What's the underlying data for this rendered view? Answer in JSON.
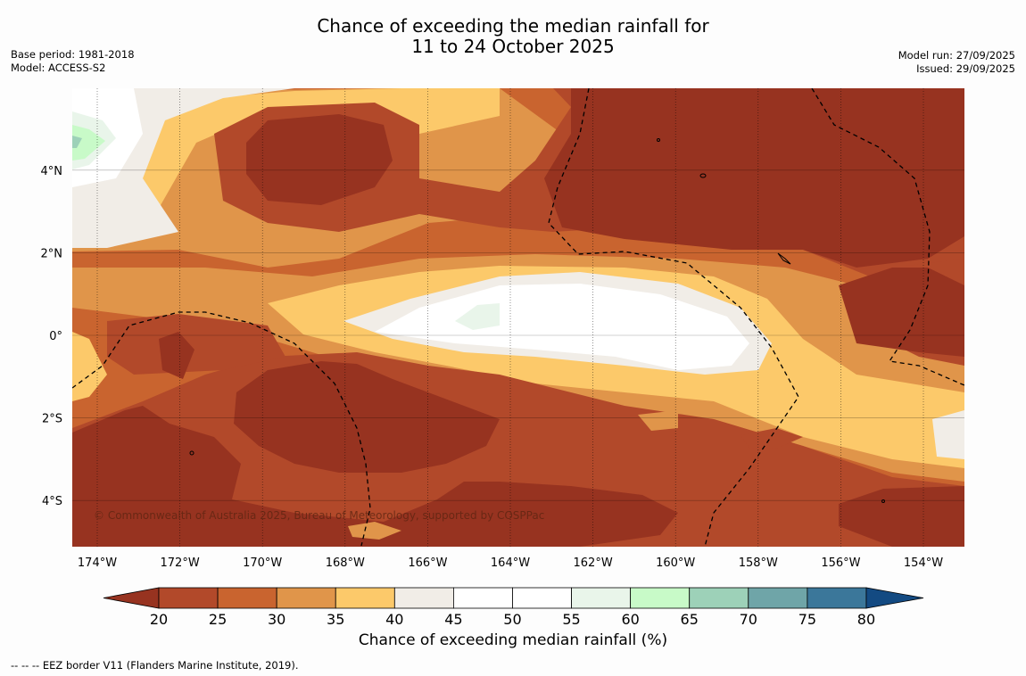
{
  "title": {
    "line1": "Chance of exceeding the median rainfall for",
    "line2": "11 to 24 October 2025"
  },
  "meta_left": {
    "base_period": "Base period: 1981-2018",
    "model": "Model: ACCESS-S2"
  },
  "meta_right": {
    "model_run": "Model run: 27/09/2025",
    "issued": "Issued: 29/09/2025"
  },
  "axes": {
    "lon_ticks": [
      "174°W",
      "172°W",
      "170°W",
      "168°W",
      "166°W",
      "164°W",
      "162°W",
      "160°W",
      "158°W",
      "156°W",
      "154°W"
    ],
    "lat_ticks": [
      "4°N",
      "2°N",
      "0°",
      "2°S",
      "4°S"
    ]
  },
  "map_data": {
    "type": "filled contour map",
    "lon_range": [
      -174.6,
      -153.0
    ],
    "lat_range": [
      -5.1,
      6.0
    ],
    "variable": "Chance of exceeding median rainfall (%)",
    "regions": [
      {
        "area": "north-east of 163°W, 2–6°N",
        "range": "< 20%"
      },
      {
        "area": "southern band 3–5°S west of 164°W",
        "range": "< 20%"
      },
      {
        "area": "equatorial belt 168°W–157°W, 0–1°N",
        "range": "45–55%"
      },
      {
        "area": "around 164.5°W, 0.5°N",
        "range": "55–60%"
      },
      {
        "area": "far north-west corner near 174°W, 4.8°N",
        "range": "60–65%"
      }
    ]
  },
  "colorbar": {
    "ticks": [
      "20",
      "25",
      "30",
      "35",
      "40",
      "45",
      "50",
      "55",
      "60",
      "65",
      "70",
      "75",
      "80"
    ],
    "colors": [
      "#973320",
      "#b2492a",
      "#c9642f",
      "#e0954a",
      "#fcc96a",
      "#f1ede7",
      "#ffffff",
      "#ffffff",
      "#e9f5ea",
      "#c8fac8",
      "#9dd1b8",
      "#6fa5a8",
      "#3b779a",
      "#134a82"
    ],
    "label": "Chance of exceeding median rainfall (%)"
  },
  "legend": {
    "eez_line": "- - - - EEZ border V11 (Flanders Marine Institute, 2019).",
    "eez_marker": "--  --  --",
    "eez_text": "EEZ border V11 (Flanders Marine Institute, 2019)."
  },
  "credit": "© Commonwealth of Australia 2025, Bureau of Meteorology, supported by COSPPac"
}
